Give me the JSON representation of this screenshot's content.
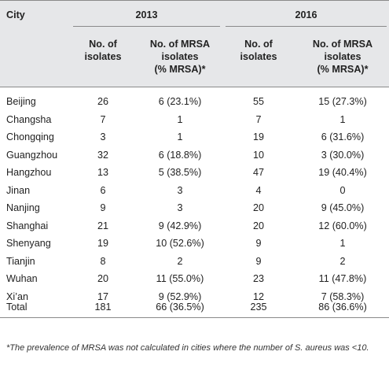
{
  "table": {
    "header": {
      "city": "City",
      "year_a": "2013",
      "year_b": "2016",
      "isolates_l1": "No. of",
      "isolates_l2": "isolates",
      "mrsa_l1": "No. of MRSA",
      "mrsa_l2": "isolates",
      "mrsa_l3": "(% MRSA)*"
    },
    "rows": [
      {
        "city": "Beijing",
        "iso13": "26",
        "mrsa13": "6 (23.1%)",
        "iso16": "55",
        "mrsa16": "15 (27.3%)"
      },
      {
        "city": "Changsha",
        "iso13": "7",
        "mrsa13": "1",
        "iso16": "7",
        "mrsa16": "1"
      },
      {
        "city": "Chongqing",
        "iso13": "3",
        "mrsa13": "1",
        "iso16": "19",
        "mrsa16": "6 (31.6%)"
      },
      {
        "city": "Guangzhou",
        "iso13": "32",
        "mrsa13": "6 (18.8%)",
        "iso16": "10",
        "mrsa16": "3 (30.0%)"
      },
      {
        "city": "Hangzhou",
        "iso13": "13",
        "mrsa13": "5 (38.5%)",
        "iso16": "47",
        "mrsa16": "19 (40.4%)"
      },
      {
        "city": "Jinan",
        "iso13": "6",
        "mrsa13": "3",
        "iso16": "4",
        "mrsa16": "0"
      },
      {
        "city": "Nanjing",
        "iso13": "9",
        "mrsa13": "3",
        "iso16": "20",
        "mrsa16": "9 (45.0%)"
      },
      {
        "city": "Shanghai",
        "iso13": "21",
        "mrsa13": "9 (42.9%)",
        "iso16": "20",
        "mrsa16": "12 (60.0%)"
      },
      {
        "city": "Shenyang",
        "iso13": "19",
        "mrsa13": "10 (52.6%)",
        "iso16": "9",
        "mrsa16": "1"
      },
      {
        "city": "Tianjin",
        "iso13": "8",
        "mrsa13": "2",
        "iso16": "9",
        "mrsa16": "2"
      },
      {
        "city": "Wuhan",
        "iso13": "20",
        "mrsa13": "11 (55.0%)",
        "iso16": "23",
        "mrsa16": "11 (47.8%)"
      },
      {
        "city": "Xi’an",
        "iso13": "17",
        "mrsa13": "9 (52.9%)",
        "iso16": "12",
        "mrsa16": "7 (58.3%)"
      },
      {
        "city": "Total",
        "iso13": "181",
        "mrsa13": "66 (36.5%)",
        "iso16": "235",
        "mrsa16": "86 (36.6%)"
      }
    ],
    "footnote": "*The prevalence of MRSA was not calculated in cities where the number of S. aureus was <10."
  }
}
